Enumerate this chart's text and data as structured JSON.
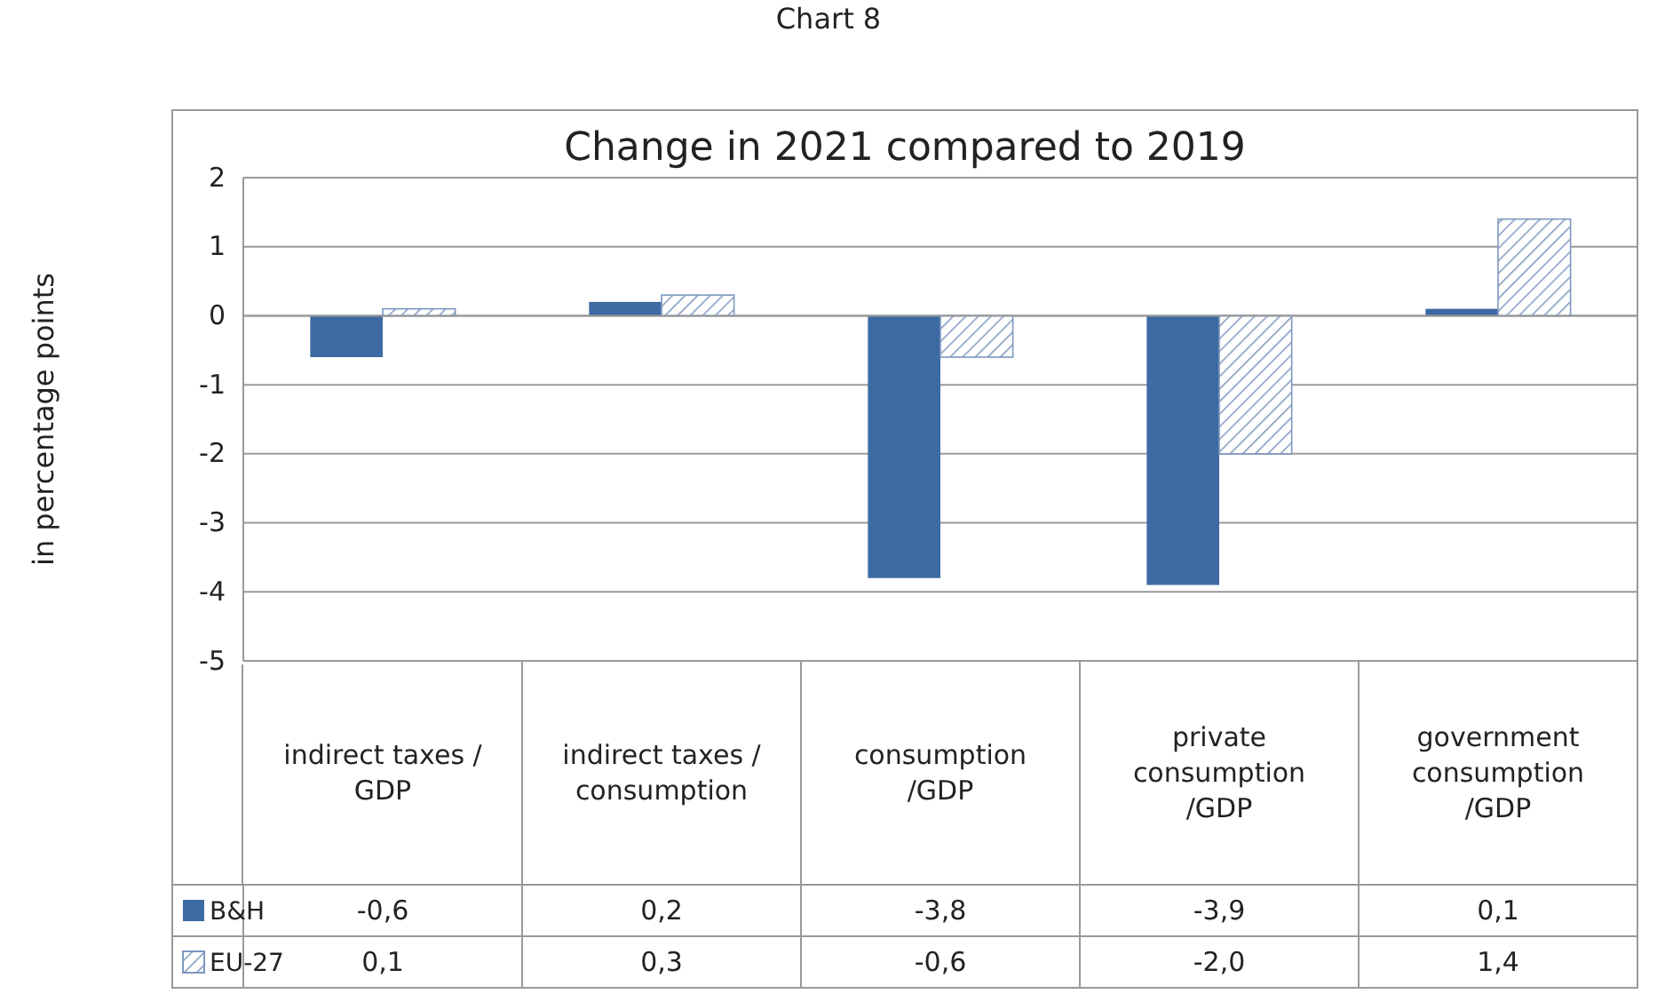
{
  "chart_data": {
    "type": "bar",
    "title": "Change in 2021 compared to 2019",
    "ylabel": "in percentage points",
    "annotations": [
      "Chart 8"
    ],
    "categories": [
      "indirect taxes / GDP",
      "indirect taxes / consumption",
      "consumption /GDP",
      "private consumption /GDP",
      "government consumption /GDP"
    ],
    "series": [
      {
        "name": "B&H",
        "color": "#3d6aa3",
        "values": [
          -0.6,
          0.2,
          -3.8,
          -3.9,
          0.1
        ],
        "value_labels": [
          "-0,6",
          "0,2",
          "-3,8",
          "-3,9",
          "0,1"
        ]
      },
      {
        "name": "EU-27",
        "color": "#7d97bf",
        "values": [
          0.1,
          0.3,
          -0.6,
          -2.0,
          1.4
        ],
        "value_labels": [
          "0,1",
          "0,3",
          "-0,6",
          "-2,0",
          "1,4"
        ]
      }
    ],
    "ylim": [
      -5,
      2
    ],
    "yticks": [
      -5,
      -4,
      -3,
      -2,
      -1,
      0,
      1,
      2
    ],
    "grid": "y",
    "legend": "bottom"
  }
}
